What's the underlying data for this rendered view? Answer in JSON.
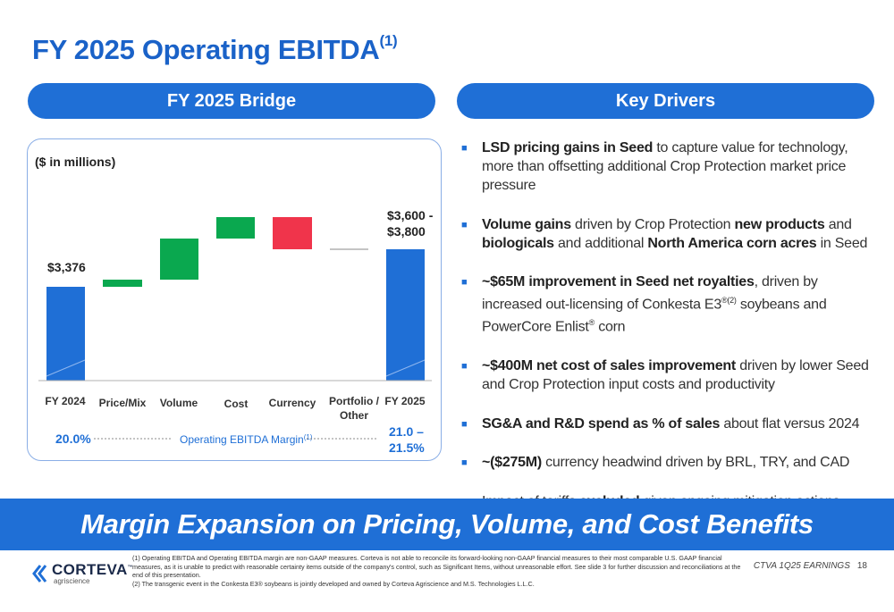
{
  "title": {
    "text": "FY 2025 Operating EBITDA",
    "sup": "(1)"
  },
  "left_header": "FY 2025 Bridge",
  "right_header": "Key Drivers",
  "chart": {
    "units_note": "($ in millions)",
    "colors": {
      "total": "#1f6fd6",
      "positive": "#0aa84f",
      "negative": "#f0344b",
      "flat": "#888888"
    },
    "categories": [
      "FY 2024",
      "Price/Mix",
      "Volume",
      "Cost",
      "Currency",
      "Portfolio /",
      "FY 2025"
    ],
    "portfolio_line2": "Other",
    "start_label": "$3,376",
    "end_label_line1": "$3,600 -",
    "end_label_line2": "$3,800",
    "margin_start": "20.0%",
    "margin_label": "Operating EBITDA Margin",
    "margin_sup": "(1)",
    "margin_end_line1": "21.0 –",
    "margin_end_line2": "21.5%"
  },
  "drivers": [
    {
      "parts": [
        {
          "b": true,
          "t": "LSD pricing gains in Seed"
        },
        {
          "b": false,
          "t": " to capture value for technology, more than offsetting additional Crop Protection market price pressure"
        }
      ]
    },
    {
      "parts": [
        {
          "b": true,
          "t": "Volume gains"
        },
        {
          "b": false,
          "t": " driven by Crop Protection "
        },
        {
          "b": true,
          "t": "new products"
        },
        {
          "b": false,
          "t": " and "
        },
        {
          "b": true,
          "t": "biologicals"
        },
        {
          "b": false,
          "t": " and additional "
        },
        {
          "b": true,
          "t": "North America corn acres"
        },
        {
          "b": false,
          "t": " in Seed"
        }
      ]
    },
    {
      "parts": [
        {
          "b": true,
          "t": "~$65M improvement in Seed net royalties"
        },
        {
          "b": false,
          "t": ", driven by increased out-licensing of Conkesta E3"
        },
        {
          "sup": "®(2)"
        },
        {
          "b": false,
          "t": " soybeans and PowerCore Enlist"
        },
        {
          "sup": "®"
        },
        {
          "b": false,
          "t": " corn"
        }
      ]
    },
    {
      "parts": [
        {
          "b": true,
          "t": "~$400M net cost of sales improvement"
        },
        {
          "b": false,
          "t": " driven by lower Seed and Crop Protection input costs and productivity"
        }
      ]
    },
    {
      "parts": [
        {
          "b": true,
          "t": "SG&A and R&D spend as % of sales"
        },
        {
          "b": false,
          "t": " about flat versus 2024"
        }
      ]
    },
    {
      "parts": [
        {
          "b": true,
          "t": "~($275M)"
        },
        {
          "b": false,
          "t": " currency headwind driven by BRL, TRY, and CAD"
        }
      ]
    },
    {
      "parts": [
        {
          "b": false,
          "t": "Impact of tariffs "
        },
        {
          "b": true,
          "t": "excluded"
        },
        {
          "b": false,
          "t": " given ongoing mitigation actions"
        }
      ]
    }
  ],
  "banner": "Margin Expansion on Pricing, Volume, and Cost Benefits",
  "logo": {
    "name": "CORTEVA",
    "tm": "™",
    "sub": "agriscience"
  },
  "footnotes": [
    "(1)  Operating EBITDA and Operating EBITDA margin are non-GAAP measures. Corteva is not able to reconcile its forward-looking non-GAAP financial measures to their most comparable U.S. GAAP financial measures, as it is unable to predict with reasonable certainty items outside of the company's control, such as Significant Items, without unreasonable effort.   See slide 3 for further discussion and reconciliations at the end of this presentation.",
    "(2) The transgenic event in the Conkesta E3® soybeans is jointly developed and owned by Corteva Agriscience and M.S. Technologies L.L.C."
  ],
  "footer": {
    "report": "CTVA 1Q25 EARNINGS",
    "page": "18"
  }
}
